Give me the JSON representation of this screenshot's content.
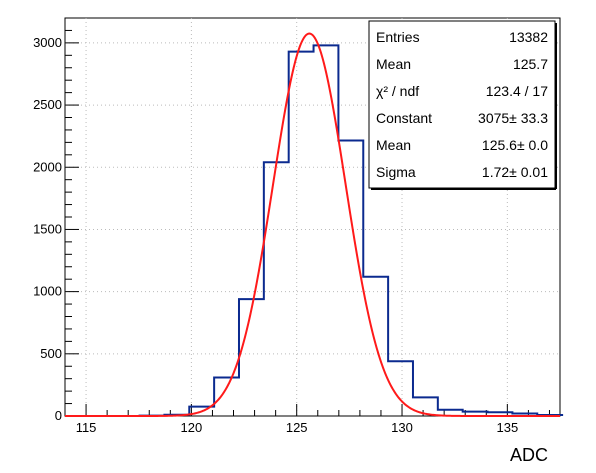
{
  "chart_data": {
    "type": "histogram",
    "title": "",
    "xlabel": "ADC",
    "ylabel": "",
    "xlim": [
      114,
      137.5
    ],
    "ylim": [
      0,
      3200
    ],
    "grid": true,
    "x_ticks": [
      115,
      120,
      125,
      130,
      135
    ],
    "y_ticks": [
      0,
      500,
      1000,
      1500,
      2000,
      2500,
      3000
    ],
    "histogram": {
      "color": "#0b2a8f",
      "bin_width": 1.18,
      "bin_edges": [
        114,
        115.18,
        116.36,
        117.54,
        118.72,
        119.9,
        121.08,
        122.26,
        123.44,
        124.62,
        125.8,
        126.98,
        128.16,
        129.34,
        130.52,
        131.7,
        132.88,
        134.06,
        135.24,
        136.42,
        137.6
      ],
      "counts": [
        0,
        0,
        0,
        3,
        10,
        75,
        310,
        940,
        2040,
        2930,
        2980,
        2215,
        1120,
        440,
        150,
        50,
        35,
        30,
        20,
        8
      ]
    },
    "fit": {
      "name": "gaus",
      "color": "#ff1a1a",
      "constant": 3075,
      "mean": 125.6,
      "sigma": 1.72
    },
    "stats_box": {
      "rows": [
        {
          "label": "Entries",
          "value": "13382"
        },
        {
          "label": "Mean",
          "value": "125.7"
        },
        {
          "label": "χ² / ndf",
          "value": "123.4 / 17"
        },
        {
          "label": "Constant",
          "value": "3075± 33.3"
        },
        {
          "label": "Mean",
          "value": "125.6± 0.0"
        },
        {
          "label": "Sigma",
          "value": "1.72± 0.01"
        }
      ]
    }
  }
}
